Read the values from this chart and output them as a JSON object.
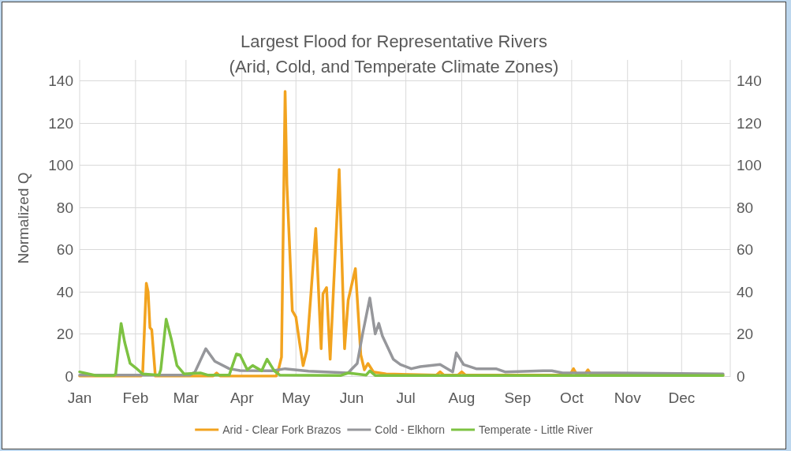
{
  "chart_data": {
    "type": "line",
    "title": "Largest Flood for Representative Rivers\n(Arid, Cold, and Temperate Climate Zones)",
    "ylabel": "Normalized Q",
    "xlim": [
      "--01-01",
      "--12-28"
    ],
    "xticks": [
      {
        "value": "--01-01",
        "label": "Jan"
      },
      {
        "value": "--02-01",
        "label": "Feb"
      },
      {
        "value": "--03-01",
        "label": "Mar"
      },
      {
        "value": "--04-01",
        "label": "Apr"
      },
      {
        "value": "--05-01",
        "label": "May"
      },
      {
        "value": "--06-01",
        "label": "Jun"
      },
      {
        "value": "--07-01",
        "label": "Jul"
      },
      {
        "value": "--08-01",
        "label": "Aug"
      },
      {
        "value": "--09-01",
        "label": "Sep"
      },
      {
        "value": "--10-01",
        "label": "Oct"
      },
      {
        "value": "--11-01",
        "label": "Nov"
      },
      {
        "value": "--12-01",
        "label": "Dec"
      }
    ],
    "ylim": [
      0,
      150
    ],
    "yticks": [
      0,
      20,
      40,
      60,
      80,
      100,
      120,
      140
    ],
    "y2lim": [
      0,
      150
    ],
    "y2ticks": [
      0,
      20,
      40,
      60,
      80,
      100,
      120,
      140
    ],
    "grid": true,
    "legend": "bottom",
    "marker": "none",
    "line_style": "solid",
    "series": [
      {
        "name": "Arid - Clear Fork Brazos",
        "color": "#f2a31f",
        "x": [
          "--01-01",
          "--02-04",
          "--02-05",
          "--02-07",
          "--02-08",
          "--02-09",
          "--02-10",
          "--02-12",
          "--03-16",
          "--03-18",
          "--03-20",
          "--04-20",
          "--04-21",
          "--04-23",
          "--04-25",
          "--04-26",
          "--04-29",
          "--05-01",
          "--05-03",
          "--05-05",
          "--05-07",
          "--05-12",
          "--05-15",
          "--05-16",
          "--05-18",
          "--05-20",
          "--05-25",
          "--05-28",
          "--05-30",
          "--06-03",
          "--06-06",
          "--06-08",
          "--06-10",
          "--06-13",
          "--06-20",
          "--07-18",
          "--07-20",
          "--07-22",
          "--07-30",
          "--08-01",
          "--08-03",
          "--09-30",
          "--10-02",
          "--10-04",
          "--10-08",
          "--10-10",
          "--10-12",
          "--10-31",
          "--12-24"
        ],
        "values": [
          0,
          0,
          2,
          44,
          40,
          23,
          22,
          0,
          0,
          1.5,
          0,
          0,
          2,
          9,
          135,
          91,
          31,
          28,
          16,
          5,
          12,
          70,
          13,
          39,
          42,
          8,
          98,
          13,
          36,
          51,
          10,
          3,
          6,
          2,
          1,
          0.5,
          2,
          0.5,
          0.5,
          2,
          0.5,
          0.5,
          3.5,
          0.5,
          0.5,
          3,
          0.5,
          1,
          0.5
        ]
      },
      {
        "name": "Cold - Elkhorn",
        "color": "#96979b",
        "x": [
          "--01-01",
          "--03-03",
          "--03-06",
          "--03-12",
          "--03-17",
          "--03-25",
          "--03-31",
          "--04-18",
          "--04-25",
          "--05-08",
          "--05-30",
          "--06-01",
          "--06-04",
          "--06-07",
          "--06-11",
          "--06-14",
          "--06-16",
          "--06-18",
          "--06-24",
          "--06-28",
          "--07-04",
          "--07-09",
          "--07-20",
          "--07-27",
          "--07-29",
          "--08-02",
          "--08-09",
          "--08-20",
          "--08-25",
          "--09-15",
          "--09-20",
          "--09-26",
          "--10-25",
          "--12-24"
        ],
        "values": [
          0.5,
          0.5,
          2,
          13,
          7,
          3.5,
          2.6,
          2.5,
          3.5,
          2.3,
          1.5,
          3.4,
          6,
          20,
          37,
          20,
          25,
          19,
          8,
          5.5,
          3.5,
          4.5,
          5.5,
          2,
          11,
          5.5,
          3.5,
          3.5,
          2,
          2.5,
          2.5,
          1.5,
          1.5,
          1
        ]
      },
      {
        "name": "Temperate - Little River",
        "color": "#7dc242",
        "x": [
          "--01-01",
          "--01-10",
          "--01-20",
          "--01-21",
          "--01-24",
          "--01-26",
          "--01-29",
          "--02-01",
          "--02-05",
          "--02-14",
          "--02-15",
          "--02-18",
          "--02-21",
          "--02-24",
          "--02-28",
          "--03-09",
          "--03-13",
          "--03-25",
          "--03-29",
          "--03-31",
          "--04-04",
          "--04-07",
          "--04-12",
          "--04-15",
          "--04-19",
          "--04-22",
          "--05-26",
          "--05-30",
          "--06-09",
          "--06-11",
          "--06-14",
          "--12-24"
        ],
        "values": [
          2,
          0.3,
          0.3,
          1,
          25,
          16,
          6,
          4,
          1,
          0.5,
          3,
          27,
          17,
          5,
          1,
          1.5,
          0.5,
          0.5,
          10.5,
          10,
          3,
          5,
          2.5,
          8,
          2.5,
          0.5,
          0.3,
          1.5,
          0.5,
          2.5,
          0.3,
          0.3
        ]
      }
    ]
  }
}
